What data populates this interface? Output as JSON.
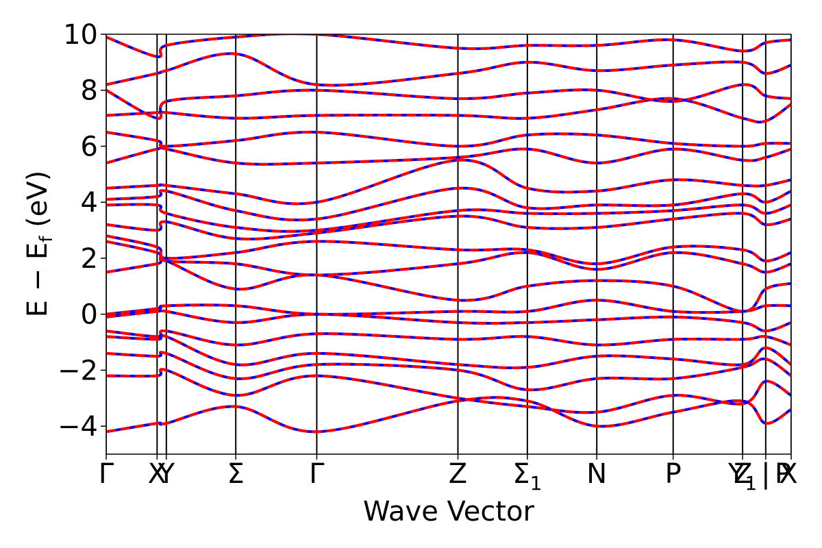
{
  "chart_data": {
    "type": "line",
    "title": "",
    "xlabel": "Wave Vector",
    "ylabel": "E − E",
    "ylabel_subscript": "f",
    "ylabel_unit": " (eV)",
    "ylim": [
      -5,
      10
    ],
    "yticks": [
      {
        "value": -4,
        "label": "−4"
      },
      {
        "value": -2,
        "label": "−2"
      },
      {
        "value": 0,
        "label": "0"
      },
      {
        "value": 2,
        "label": "2"
      },
      {
        "value": 4,
        "label": "4"
      },
      {
        "value": 6,
        "label": "6"
      },
      {
        "value": 8,
        "label": "8"
      },
      {
        "value": 10,
        "label": "10"
      }
    ],
    "xlim": [
      0,
      14.8
    ],
    "high_symmetry_points": [
      {
        "x": 0.0,
        "label": "Γ"
      },
      {
        "x": 1.1,
        "label": "X"
      },
      {
        "x": 1.3,
        "label": "Y"
      },
      {
        "x": 2.8,
        "label": "Σ"
      },
      {
        "x": 4.55,
        "label": "Γ"
      },
      {
        "x": 7.6,
        "label": "Z"
      },
      {
        "x": 9.1,
        "label": "Σ",
        "sub": "1"
      },
      {
        "x": 10.6,
        "label": "N"
      },
      {
        "x": 12.25,
        "label": "P"
      },
      {
        "x": 13.75,
        "label": "Y",
        "sub": "1"
      },
      {
        "x": 14.25,
        "label": "Z | X"
      },
      {
        "x": 14.8,
        "label": "P"
      }
    ],
    "series_style": [
      {
        "role": "solid",
        "color": "#0000ff",
        "dash": "solid"
      },
      {
        "role": "dashed",
        "color": "#ff0000",
        "dash": "dashed"
      }
    ],
    "bands": [
      [
        -4.2,
        -3.9,
        -3.9,
        -3.3,
        -4.2,
        -3.1,
        -3.1,
        -4.0,
        -3.5,
        -3.1,
        -3.9,
        -3.4
      ],
      [
        -2.2,
        -2.2,
        -2.0,
        -2.9,
        -2.2,
        -3.0,
        -3.3,
        -3.5,
        -2.9,
        -3.2,
        -2.4,
        -2.9
      ],
      [
        -1.4,
        -1.5,
        -1.4,
        -2.3,
        -1.8,
        -2.0,
        -2.7,
        -2.3,
        -2.3,
        -1.9,
        -1.6,
        -2.2
      ],
      [
        -0.8,
        -0.9,
        -0.8,
        -1.8,
        -1.4,
        -1.8,
        -1.9,
        -1.5,
        -1.6,
        -1.8,
        -1.2,
        -1.8
      ],
      [
        -0.6,
        -0.8,
        -0.6,
        -1.1,
        -0.7,
        -0.9,
        -0.8,
        -1.1,
        -0.9,
        -0.9,
        -0.8,
        -1.1
      ],
      [
        -0.1,
        0.1,
        0.1,
        -0.3,
        0.0,
        -0.3,
        -0.3,
        -0.2,
        -0.1,
        -0.3,
        -0.6,
        -0.3
      ],
      [
        0.0,
        0.2,
        0.3,
        0.3,
        0.0,
        0.1,
        0.1,
        0.5,
        0.1,
        0.1,
        0.3,
        0.3
      ],
      [
        1.5,
        1.8,
        1.9,
        0.9,
        1.4,
        0.5,
        1.0,
        1.2,
        1.0,
        0.1,
        0.9,
        1.1
      ],
      [
        2.6,
        2.2,
        1.9,
        1.8,
        1.4,
        1.8,
        2.2,
        1.6,
        2.2,
        1.8,
        1.5,
        1.8
      ],
      [
        2.8,
        2.4,
        2.0,
        2.2,
        2.6,
        2.3,
        2.3,
        1.8,
        2.4,
        2.3,
        1.9,
        2.2
      ],
      [
        3.2,
        3.0,
        3.3,
        2.7,
        2.9,
        3.5,
        3.1,
        3.1,
        3.4,
        3.6,
        3.2,
        3.4
      ],
      [
        3.9,
        3.9,
        3.6,
        3.1,
        3.0,
        3.7,
        3.6,
        3.6,
        3.7,
        3.9,
        3.6,
        3.9
      ],
      [
        4.1,
        4.2,
        4.4,
        3.7,
        3.4,
        4.5,
        3.8,
        3.9,
        3.9,
        4.3,
        4.0,
        4.4
      ],
      [
        4.5,
        4.6,
        4.6,
        4.3,
        4.0,
        5.5,
        4.5,
        4.4,
        4.8,
        4.6,
        4.6,
        4.8
      ],
      [
        5.4,
        5.9,
        5.9,
        5.4,
        5.4,
        5.6,
        5.9,
        5.4,
        5.9,
        5.5,
        5.6,
        5.9
      ],
      [
        6.5,
        6.2,
        6.0,
        6.2,
        6.5,
        6.0,
        6.4,
        6.4,
        6.1,
        6.0,
        6.1,
        6.1
      ],
      [
        7.1,
        7.2,
        7.2,
        7.0,
        7.1,
        7.1,
        7.0,
        7.3,
        7.7,
        7.0,
        6.9,
        7.5
      ],
      [
        8.0,
        7.0,
        7.6,
        7.8,
        8.0,
        7.7,
        7.9,
        8.0,
        7.6,
        8.2,
        7.8,
        7.7
      ],
      [
        8.2,
        8.6,
        8.7,
        9.3,
        8.2,
        8.6,
        9.0,
        8.7,
        8.9,
        9.0,
        8.6,
        8.9
      ],
      [
        9.9,
        9.2,
        9.6,
        9.9,
        10.0,
        9.5,
        9.6,
        9.6,
        9.8,
        9.4,
        9.7,
        9.8
      ]
    ]
  }
}
